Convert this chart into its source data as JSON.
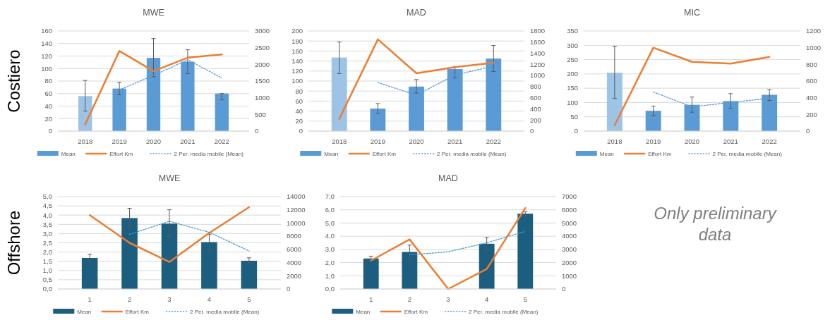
{
  "chart_data": [
    {
      "type": "bar",
      "title": "MWE",
      "categories": [
        "2018",
        "2019",
        "2020",
        "2021",
        "2022"
      ],
      "ylim": [
        0,
        160
      ],
      "yticks": [
        0,
        20,
        40,
        60,
        80,
        100,
        120,
        140,
        160
      ],
      "y2lim": [
        0,
        3000
      ],
      "y2ticks": [
        0,
        500,
        1000,
        1500,
        2000,
        2500,
        3000
      ],
      "grid": "y",
      "legend": "bottom",
      "annotations": [
        "Costiero"
      ],
      "series": [
        {
          "name": "Mean",
          "type": "bar",
          "color": "#5b9bd5",
          "colors": [
            "#9dc3e6",
            "#5b9bd5",
            "#5b9bd5",
            "#5b9bd5",
            "#5b9bd5"
          ],
          "values": [
            56,
            68,
            117,
            111,
            60
          ],
          "errors": [
            [
              32,
              81
            ],
            [
              58,
              78
            ],
            [
              87,
              148
            ],
            [
              92,
              130
            ],
            [
              50,
              60
            ]
          ]
        },
        {
          "name": "Effort Km",
          "type": "line",
          "axis": "y2",
          "color": "#ed7d31",
          "line_style": "solid",
          "values": [
            200,
            2400,
            1800,
            2200,
            2300
          ]
        },
        {
          "name": "2 Per. media mobile (Mean)",
          "type": "line",
          "color": "#5b9bd5",
          "line_style": "dotted",
          "values": [
            null,
            66,
            89,
            114,
            85
          ]
        }
      ]
    },
    {
      "type": "bar",
      "title": "MAD",
      "categories": [
        "2018",
        "2019",
        "2020",
        "2021",
        "2022"
      ],
      "ylim": [
        0,
        200
      ],
      "yticks": [
        0,
        20,
        40,
        60,
        80,
        100,
        120,
        140,
        160,
        180,
        200
      ],
      "y2lim": [
        0,
        1800
      ],
      "y2ticks": [
        0,
        200,
        400,
        600,
        800,
        1000,
        1200,
        1400,
        1600,
        1800
      ],
      "grid": "y",
      "legend": "bottom",
      "series": [
        {
          "name": "Mean",
          "type": "bar",
          "color": "#5b9bd5",
          "colors": [
            "#9dc3e6",
            "#5b9bd5",
            "#5b9bd5",
            "#5b9bd5",
            "#5b9bd5"
          ],
          "values": [
            147,
            45,
            89,
            124,
            145
          ],
          "errors": [
            [
              115,
              178
            ],
            [
              35,
              55
            ],
            [
              76,
              103
            ],
            [
              106,
              129
            ],
            [
              119,
              171
            ]
          ]
        },
        {
          "name": "Effort Km",
          "type": "line",
          "axis": "y2",
          "color": "#ed7d31",
          "line_style": "solid",
          "values": [
            220,
            1650,
            1040,
            1150,
            1230
          ]
        },
        {
          "name": "2 Per. media mobile (Mean)",
          "type": "line",
          "color": "#5b9bd5",
          "line_style": "dotted",
          "values": [
            null,
            97,
            72,
            112,
            130
          ]
        }
      ]
    },
    {
      "type": "bar",
      "title": "MIC",
      "categories": [
        "2018",
        "2019",
        "2020",
        "2021",
        "2022"
      ],
      "ylim": [
        0,
        350
      ],
      "yticks": [
        0,
        50,
        100,
        150,
        200,
        250,
        300,
        350
      ],
      "y2lim": [
        0,
        1200
      ],
      "y2ticks": [
        0,
        200,
        400,
        600,
        800,
        1000,
        1200
      ],
      "grid": "y",
      "legend": "bottom",
      "series": [
        {
          "name": "Mean",
          "type": "bar",
          "color": "#5b9bd5",
          "colors": [
            "#9dc3e6",
            "#5b9bd5",
            "#5b9bd5",
            "#5b9bd5",
            "#5b9bd5"
          ],
          "values": [
            204,
            71,
            92,
            105,
            127
          ],
          "errors": [
            [
              114,
              297
            ],
            [
              54,
              87
            ],
            [
              66,
              119
            ],
            [
              80,
              131
            ],
            [
              107,
              145
            ]
          ]
        },
        {
          "name": "Effort Km",
          "type": "line",
          "axis": "y2",
          "color": "#ed7d31",
          "line_style": "solid",
          "values": [
            70,
            1000,
            830,
            810,
            890
          ]
        },
        {
          "name": "2 Per. media mobile (Mean)",
          "type": "line",
          "color": "#5b9bd5",
          "line_style": "dotted",
          "values": [
            null,
            137,
            85,
            100,
            115
          ]
        }
      ]
    },
    {
      "type": "bar",
      "title": "MWE",
      "categories": [
        "1",
        "2",
        "3",
        "4",
        "5"
      ],
      "ylim": [
        0,
        5
      ],
      "yticks": [
        {
          "value": 0,
          "label": "0,0"
        },
        {
          "value": 0.5,
          "label": "0,5"
        },
        {
          "value": 1,
          "label": "1,0"
        },
        {
          "value": 1.5,
          "label": "1,5"
        },
        {
          "value": 2,
          "label": "2,0"
        },
        {
          "value": 2.5,
          "label": "2,5"
        },
        {
          "value": 3,
          "label": "3,0"
        },
        {
          "value": 3.5,
          "label": "3,5"
        },
        {
          "value": 4,
          "label": "4,0"
        },
        {
          "value": 4.5,
          "label": "4,5"
        },
        {
          "value": 5,
          "label": "5,0"
        }
      ],
      "y2lim": [
        0,
        14000
      ],
      "y2ticks": [
        0,
        2000,
        4000,
        6000,
        8000,
        10000,
        12000,
        14000
      ],
      "grid": "y",
      "legend": "bottom",
      "annotations": [
        "Offshore"
      ],
      "series": [
        {
          "name": "Mean",
          "type": "bar",
          "color": "#1b5e80",
          "values": [
            1.68,
            3.84,
            3.54,
            2.54,
            1.53
          ],
          "errors": [
            [
              1.5,
              1.88
            ],
            [
              3.33,
              4.37
            ],
            [
              2.84,
              4.29
            ],
            [
              2.1,
              2.95
            ],
            [
              1.36,
              1.69
            ]
          ]
        },
        {
          "name": "Effort Km",
          "type": "line",
          "axis": "y2",
          "color": "#ed7d31",
          "line_style": "solid",
          "values": [
            11200,
            7000,
            4100,
            8500,
            12400
          ]
        },
        {
          "name": "2 Per. media mobile (Mean)",
          "type": "line",
          "color": "#4a9cc4",
          "line_style": "dotted",
          "values": [
            null,
            2.96,
            3.67,
            3.07,
            2.06
          ]
        }
      ]
    },
    {
      "type": "bar",
      "title": "MAD",
      "categories": [
        "1",
        "2",
        "3",
        "4",
        "5"
      ],
      "ylim": [
        0,
        7
      ],
      "yticks": [
        {
          "value": 0,
          "label": "0,0"
        },
        {
          "value": 1,
          "label": "1,0"
        },
        {
          "value": 2,
          "label": "2,0"
        },
        {
          "value": 3,
          "label": "3,0"
        },
        {
          "value": 4,
          "label": "4,0"
        },
        {
          "value": 5,
          "label": "5,0"
        },
        {
          "value": 6,
          "label": "6,0"
        },
        {
          "value": 7,
          "label": "7,0"
        }
      ],
      "y2lim": [
        0,
        7000
      ],
      "y2ticks": [
        0,
        1000,
        2000,
        3000,
        4000,
        5000,
        6000,
        7000
      ],
      "grid": "y",
      "legend": "bottom",
      "series": [
        {
          "name": "Mean",
          "type": "bar",
          "color": "#1b5e80",
          "values": [
            2.31,
            2.81,
            null,
            3.43,
            5.71
          ],
          "errors": [
            [
              2.16,
              2.49
            ],
            [
              2.29,
              3.33
            ],
            null,
            [
              2.99,
              3.9
            ],
            [
              5.55,
              5.86
            ]
          ]
        },
        {
          "name": "Effort Km",
          "type": "line",
          "axis": "y2",
          "color": "#ed7d31",
          "line_style": "solid",
          "values": [
            2150,
            3760,
            0,
            1520,
            6140
          ]
        },
        {
          "name": "2 Per. media mobile (Mean)",
          "type": "line",
          "color": "#4a9cc4",
          "line_style": "dotted",
          "values": [
            null,
            2.59,
            2.82,
            3.5,
            4.37
          ]
        }
      ]
    },
    {
      "type": "other",
      "annotations": [
        "Only preliminary data"
      ]
    }
  ]
}
